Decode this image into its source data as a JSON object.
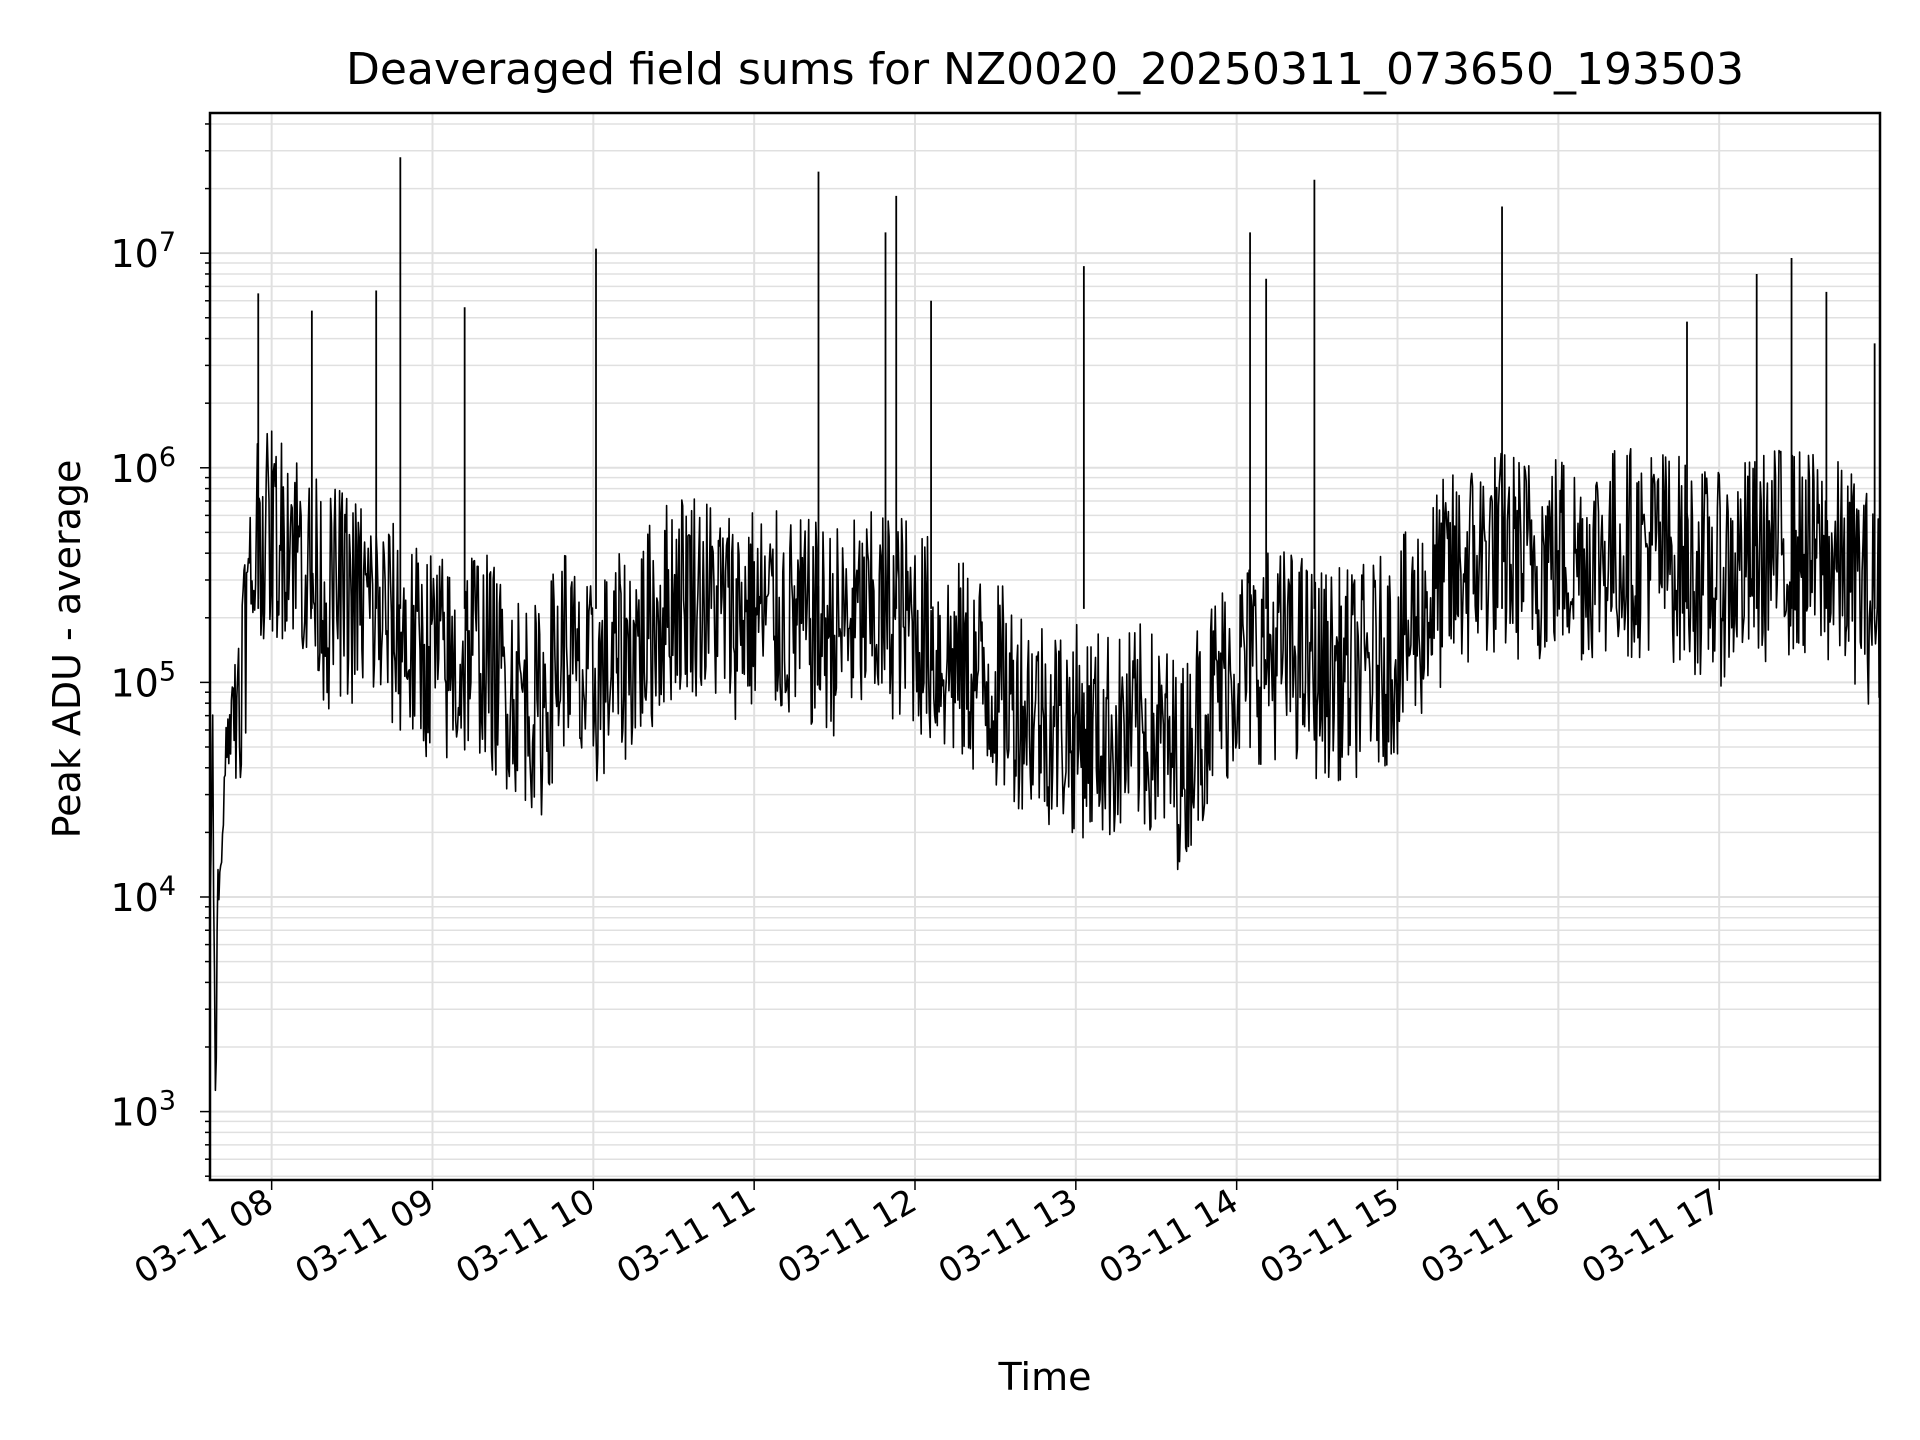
{
  "chart_data": {
    "type": "line",
    "title": "Deaveraged field sums for NZ0020_20250311_073650_193503",
    "xlabel": "Time",
    "ylabel": "Peak ADU - average",
    "y_scale": "log",
    "ylim": [
      480,
      45000000
    ],
    "xlim": [
      "03-11 07:37",
      "03-11 18:00"
    ],
    "grid": true,
    "line_color": "#000000",
    "grid_color": "#e0e0e0",
    "x_ticks": [
      {
        "label": "03-11 08",
        "time": "03-11 08:00"
      },
      {
        "label": "03-11 09",
        "time": "03-11 09:00"
      },
      {
        "label": "03-11 10",
        "time": "03-11 10:00"
      },
      {
        "label": "03-11 11",
        "time": "03-11 11:00"
      },
      {
        "label": "03-11 12",
        "time": "03-11 12:00"
      },
      {
        "label": "03-11 13",
        "time": "03-11 13:00"
      },
      {
        "label": "03-11 14",
        "time": "03-11 14:00"
      },
      {
        "label": "03-11 15",
        "time": "03-11 15:00"
      },
      {
        "label": "03-11 16",
        "time": "03-11 16:00"
      },
      {
        "label": "03-11 17",
        "time": "03-11 17:00"
      }
    ],
    "y_ticks": [
      {
        "base": "10",
        "exp": "3",
        "value": 1000
      },
      {
        "base": "10",
        "exp": "4",
        "value": 10000
      },
      {
        "base": "10",
        "exp": "5",
        "value": 100000
      },
      {
        "base": "10",
        "exp": "6",
        "value": 1000000
      },
      {
        "base": "10",
        "exp": "7",
        "value": 10000000
      }
    ],
    "series": [
      {
        "x": [
          "03-11 07:37",
          "03-11 07:38",
          "03-11 07:39",
          "03-11 07:40",
          "03-11 07:41",
          "03-11 07:43",
          "03-11 07:44",
          "03-11 07:46",
          "03-11 07:48",
          "03-11 07:50",
          "03-11 07:52",
          "03-11 07:54",
          "03-11 07:55",
          "03-11 07:56",
          "03-11 07:57",
          "03-11 07:58",
          "03-11 08:00",
          "03-11 08:03",
          "03-11 08:06",
          "03-11 08:09",
          "03-11 08:12",
          "03-11 08:15",
          "03-11 08:18",
          "03-11 08:21",
          "03-11 08:24",
          "03-11 08:27",
          "03-11 08:30",
          "03-11 08:33",
          "03-11 08:36",
          "03-11 08:39",
          "03-11 08:42",
          "03-11 08:45",
          "03-11 08:48",
          "03-11 08:51",
          "03-11 08:54",
          "03-11 08:57",
          "03-11 09:00",
          "03-11 09:05",
          "03-11 09:10",
          "03-11 09:15",
          "03-11 09:20",
          "03-11 09:25",
          "03-11 09:30",
          "03-11 09:35",
          "03-11 09:40",
          "03-11 09:45",
          "03-11 09:50",
          "03-11 09:55",
          "03-11 10:00",
          "03-11 10:08",
          "03-11 10:16",
          "03-11 10:24",
          "03-11 10:30",
          "03-11 10:36",
          "03-11 10:44",
          "03-11 10:52",
          "03-11 11:00",
          "03-11 11:08",
          "03-11 11:16",
          "03-11 11:24",
          "03-11 11:30",
          "03-11 11:36",
          "03-11 11:44",
          "03-11 11:52",
          "03-11 12:00",
          "03-11 12:08",
          "03-11 12:16",
          "03-11 12:24",
          "03-11 12:30",
          "03-11 12:36",
          "03-11 12:44",
          "03-11 12:52",
          "03-11 13:00",
          "03-11 13:08",
          "03-11 13:16",
          "03-11 13:24",
          "03-11 13:30",
          "03-11 13:36",
          "03-11 13:40",
          "03-11 13:44",
          "03-11 13:52",
          "03-11 14:00",
          "03-11 14:08",
          "03-11 14:16",
          "03-11 14:24",
          "03-11 14:30",
          "03-11 14:36",
          "03-11 14:44",
          "03-11 14:52",
          "03-11 15:00",
          "03-11 15:08",
          "03-11 15:16",
          "03-11 15:24",
          "03-11 15:30",
          "03-11 15:36",
          "03-11 15:44",
          "03-11 15:52",
          "03-11 16:00",
          "03-11 16:08",
          "03-11 16:16",
          "03-11 16:24",
          "03-11 16:30",
          "03-11 16:36",
          "03-11 16:44",
          "03-11 16:52",
          "03-11 17:00",
          "03-11 17:08",
          "03-11 17:16",
          "03-11 17:24",
          "03-11 17:30",
          "03-11 17:36",
          "03-11 17:44",
          "03-11 17:52",
          "03-11 18:00"
        ],
        "y": [
          9000,
          45000,
          1050,
          9500,
          20000,
          45000,
          60000,
          75000,
          105000,
          170000,
          250000,
          420000,
          620000,
          520000,
          480000,
          450000,
          520000,
          430000,
          600000,
          450000,
          380000,
          280000,
          300000,
          220000,
          270000,
          260000,
          240000,
          250000,
          230000,
          210000,
          200000,
          180000,
          170000,
          150000,
          140000,
          135000,
          150000,
          120000,
          110000,
          160000,
          130000,
          105000,
          95000,
          85000,
          70000,
          110000,
          160000,
          90000,
          95000,
          120000,
          150000,
          200000,
          260000,
          280000,
          240000,
          210000,
          220000,
          200000,
          190000,
          180000,
          175000,
          190000,
          200000,
          210000,
          190000,
          140000,
          120000,
          110000,
          95000,
          85000,
          75000,
          65000,
          60000,
          58000,
          55000,
          60000,
          55000,
          45000,
          40000,
          60000,
          90000,
          120000,
          130000,
          140000,
          130000,
          110000,
          110000,
          110000,
          120000,
          140000,
          200000,
          280000,
          330000,
          380000,
          400000,
          390000,
          380000,
          400000,
          380000,
          400000,
          420000,
          400000,
          430000,
          380000,
          330000,
          300000,
          350000,
          380000,
          420000,
          400000,
          380000,
          350000,
          300000,
          200000
        ]
      }
    ],
    "spikes": [
      {
        "x": "03-11 07:55",
        "y": 6500000
      },
      {
        "x": "03-11 08:15",
        "y": 5400000
      },
      {
        "x": "03-11 08:39",
        "y": 6700000
      },
      {
        "x": "03-11 08:48",
        "y": 28000000
      },
      {
        "x": "03-11 09:12",
        "y": 5600000
      },
      {
        "x": "03-11 10:01",
        "y": 10500000
      },
      {
        "x": "03-11 11:24",
        "y": 24000000
      },
      {
        "x": "03-11 11:49",
        "y": 12500000
      },
      {
        "x": "03-11 11:53",
        "y": 18500000
      },
      {
        "x": "03-11 12:06",
        "y": 6000000
      },
      {
        "x": "03-11 13:03",
        "y": 8700000
      },
      {
        "x": "03-11 14:05",
        "y": 12500000
      },
      {
        "x": "03-11 14:11",
        "y": 7600000
      },
      {
        "x": "03-11 14:29",
        "y": 22000000
      },
      {
        "x": "03-11 15:39",
        "y": 16500000
      },
      {
        "x": "03-11 16:48",
        "y": 4800000
      },
      {
        "x": "03-11 17:14",
        "y": 8000000
      },
      {
        "x": "03-11 17:27",
        "y": 9500000
      },
      {
        "x": "03-11 17:40",
        "y": 6600000
      },
      {
        "x": "03-11 17:58",
        "y": 3800000
      }
    ]
  }
}
